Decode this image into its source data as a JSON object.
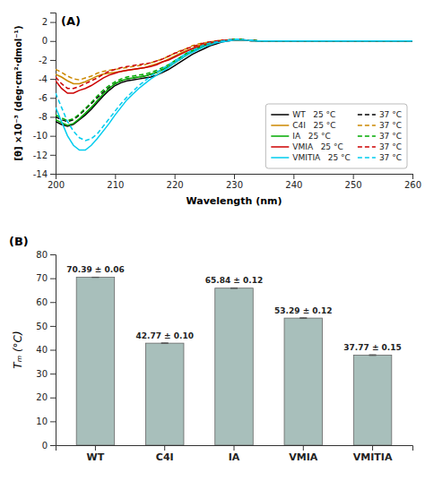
{
  "chart_data": [
    {
      "type": "line",
      "xlabel": "Wavelength (nm)",
      "ylabel": "[θ] ×10⁻³ (deg·cm²·dmol⁻¹)",
      "annotations": [
        "(A)"
      ],
      "x": [
        200,
        201,
        202,
        203,
        204,
        205,
        206,
        207,
        208,
        209,
        210,
        211,
        212,
        213,
        214,
        215,
        216,
        217,
        218,
        219,
        220,
        221,
        222,
        223,
        224,
        225,
        226,
        227,
        228,
        229,
        230,
        231,
        232,
        233,
        234,
        235,
        236,
        237,
        238,
        239,
        240,
        241,
        242,
        243,
        244,
        245,
        246,
        247,
        248,
        249,
        250,
        251,
        252,
        253,
        254,
        255,
        256,
        257,
        258,
        259,
        260
      ],
      "series": [
        {
          "name": "WT   25 °C",
          "color": "#000000",
          "line_style": "solid",
          "values": [
            -8.5,
            -8.8,
            -9.0,
            -8.8,
            -8.3,
            -7.8,
            -7.2,
            -6.5,
            -5.8,
            -5.2,
            -4.7,
            -4.4,
            -4.2,
            -4.1,
            -4.0,
            -3.9,
            -3.8,
            -3.6,
            -3.3,
            -3.0,
            -2.6,
            -2.2,
            -1.8,
            -1.4,
            -1.1,
            -0.8,
            -0.5,
            -0.3,
            -0.1,
            0.0,
            0.1,
            0.1,
            0.1,
            0.1,
            0.0,
            0.0,
            0.0,
            0.0,
            0.0,
            0.0,
            0.0,
            0.0,
            0.0,
            0.0,
            0.0,
            0.0,
            0.0,
            0.0,
            0.0,
            0.0,
            0.0,
            0.0,
            0.0,
            0.0,
            0.0,
            0.0,
            0.0,
            0.0,
            0.0,
            0.0,
            0.0
          ]
        },
        {
          "name": "37 °C",
          "color": "#000000",
          "line_style": "dashed",
          "values": [
            -8.0,
            -8.3,
            -8.5,
            -8.3,
            -7.8,
            -7.2,
            -6.6,
            -6.0,
            -5.4,
            -4.9,
            -4.5,
            -4.2,
            -4.0,
            -3.9,
            -3.8,
            -3.7,
            -3.5,
            -3.3,
            -3.0,
            -2.7,
            -2.3,
            -1.9,
            -1.5,
            -1.1,
            -0.8,
            -0.5,
            -0.3,
            -0.1,
            0.0,
            0.1,
            0.2,
            0.2,
            0.1,
            0.1,
            0.0,
            0.0,
            0.0,
            0.0,
            0.0,
            0.0,
            0.0,
            0.0,
            0.0,
            0.0,
            0.0,
            0.0,
            0.0,
            0.0,
            0.0,
            0.0,
            0.0,
            0.0,
            0.0,
            0.0,
            0.0,
            0.0,
            0.0,
            0.0,
            0.0,
            0.0,
            0.0
          ]
        },
        {
          "name": "C4I   25 °C",
          "color": "#cc8800",
          "line_style": "solid",
          "values": [
            -3.5,
            -3.8,
            -4.2,
            -4.5,
            -4.5,
            -4.3,
            -4.0,
            -3.7,
            -3.5,
            -3.4,
            -3.3,
            -3.2,
            -3.1,
            -3.0,
            -2.9,
            -2.8,
            -2.6,
            -2.4,
            -2.2,
            -1.9,
            -1.6,
            -1.3,
            -1.0,
            -0.8,
            -0.5,
            -0.3,
            -0.2,
            -0.1,
            0.0,
            0.1,
            0.1,
            0.1,
            0.1,
            0.0,
            0.0,
            0.0,
            0.0,
            0.0,
            0.0,
            0.0,
            0.0,
            0.0,
            0.0,
            0.0,
            0.0,
            0.0,
            0.0,
            0.0,
            0.0,
            0.0,
            0.0,
            0.0,
            0.0,
            0.0,
            0.0,
            0.0,
            0.0,
            0.0,
            0.0,
            0.0,
            0.0
          ]
        },
        {
          "name": "37 °C",
          "color": "#cc8800",
          "line_style": "dashed",
          "values": [
            -3.0,
            -3.3,
            -3.7,
            -4.0,
            -4.1,
            -3.9,
            -3.7,
            -3.4,
            -3.2,
            -3.1,
            -3.0,
            -2.9,
            -2.8,
            -2.7,
            -2.6,
            -2.5,
            -2.3,
            -2.1,
            -1.9,
            -1.6,
            -1.3,
            -1.0,
            -0.8,
            -0.5,
            -0.3,
            -0.2,
            -0.1,
            0.0,
            0.1,
            0.1,
            0.2,
            0.1,
            0.1,
            0.0,
            0.0,
            0.0,
            0.0,
            0.0,
            0.0,
            0.0,
            0.0,
            0.0,
            0.0,
            0.0,
            0.0,
            0.0,
            0.0,
            0.0,
            0.0,
            0.0,
            0.0,
            0.0,
            0.0,
            0.0,
            0.0,
            0.0,
            0.0,
            0.0,
            0.0,
            0.0,
            0.0
          ]
        },
        {
          "name": "IA   25 °C",
          "color": "#00aa00",
          "line_style": "solid",
          "values": [
            -8.3,
            -8.6,
            -8.9,
            -8.7,
            -8.2,
            -7.6,
            -7.0,
            -6.3,
            -5.6,
            -5.0,
            -4.5,
            -4.2,
            -4.0,
            -3.9,
            -3.8,
            -3.7,
            -3.5,
            -3.3,
            -3.0,
            -2.7,
            -2.3,
            -1.9,
            -1.5,
            -1.1,
            -0.8,
            -0.5,
            -0.3,
            -0.1,
            0.0,
            0.1,
            0.1,
            0.1,
            0.1,
            0.1,
            0.0,
            0.0,
            0.0,
            0.0,
            0.0,
            0.0,
            0.0,
            0.0,
            0.0,
            0.0,
            0.0,
            0.0,
            0.0,
            0.0,
            0.0,
            0.0,
            0.0,
            0.0,
            0.0,
            0.0,
            0.0,
            0.0,
            0.0,
            0.0,
            0.0,
            0.0,
            0.0
          ]
        },
        {
          "name": "37 °C",
          "color": "#00aa00",
          "line_style": "dashed",
          "values": [
            -7.8,
            -8.1,
            -8.4,
            -8.2,
            -7.7,
            -7.1,
            -6.5,
            -5.8,
            -5.2,
            -4.7,
            -4.3,
            -4.0,
            -3.8,
            -3.7,
            -3.6,
            -3.5,
            -3.3,
            -3.1,
            -2.8,
            -2.5,
            -2.1,
            -1.7,
            -1.3,
            -1.0,
            -0.7,
            -0.4,
            -0.2,
            -0.1,
            0.0,
            0.1,
            0.2,
            0.2,
            0.1,
            0.1,
            0.0,
            0.0,
            0.0,
            0.0,
            0.0,
            0.0,
            0.0,
            0.0,
            0.0,
            0.0,
            0.0,
            0.0,
            0.0,
            0.0,
            0.0,
            0.0,
            0.0,
            0.0,
            0.0,
            0.0,
            0.0,
            0.0,
            0.0,
            0.0,
            0.0,
            0.0,
            0.0
          ]
        },
        {
          "name": "VMIA   25 °C",
          "color": "#cc0000",
          "line_style": "solid",
          "values": [
            -4.2,
            -5.0,
            -5.5,
            -5.5,
            -5.2,
            -5.0,
            -4.7,
            -4.3,
            -3.9,
            -3.6,
            -3.4,
            -3.2,
            -3.1,
            -3.0,
            -2.9,
            -2.8,
            -2.7,
            -2.5,
            -2.2,
            -2.0,
            -1.7,
            -1.4,
            -1.1,
            -0.8,
            -0.6,
            -0.4,
            -0.2,
            -0.1,
            0.0,
            0.1,
            0.1,
            0.1,
            0.1,
            0.0,
            0.0,
            0.0,
            0.0,
            0.0,
            0.0,
            0.0,
            0.0,
            0.0,
            0.0,
            0.0,
            0.0,
            0.0,
            0.0,
            0.0,
            0.0,
            0.0,
            0.0,
            0.0,
            0.0,
            0.0,
            0.0,
            0.0,
            0.0,
            0.0,
            0.0,
            0.0,
            0.0
          ]
        },
        {
          "name": "37 °C",
          "color": "#cc0000",
          "line_style": "dashed",
          "values": [
            -3.8,
            -4.5,
            -5.0,
            -5.0,
            -4.8,
            -4.5,
            -4.2,
            -3.9,
            -3.5,
            -3.2,
            -3.0,
            -2.8,
            -2.7,
            -2.6,
            -2.5,
            -2.4,
            -2.3,
            -2.1,
            -1.9,
            -1.6,
            -1.3,
            -1.1,
            -0.8,
            -0.6,
            -0.4,
            -0.2,
            -0.1,
            0.0,
            0.1,
            0.1,
            0.2,
            0.2,
            0.1,
            0.1,
            0.0,
            0.0,
            0.0,
            0.0,
            0.0,
            0.0,
            0.0,
            0.0,
            0.0,
            0.0,
            0.0,
            0.0,
            0.0,
            0.0,
            0.0,
            0.0,
            0.0,
            0.0,
            0.0,
            0.0,
            0.0,
            0.0,
            0.0,
            0.0,
            0.0,
            0.0,
            0.0
          ]
        },
        {
          "name": "VMITIA   25 °C",
          "color": "#00ccee",
          "line_style": "solid",
          "values": [
            -7.0,
            -8.5,
            -10.0,
            -11.0,
            -11.5,
            -11.5,
            -11.0,
            -10.3,
            -9.5,
            -8.7,
            -7.8,
            -7.0,
            -6.2,
            -5.6,
            -5.0,
            -4.5,
            -4.0,
            -3.6,
            -3.2,
            -2.8,
            -2.3,
            -1.9,
            -1.5,
            -1.2,
            -0.9,
            -0.6,
            -0.4,
            -0.2,
            -0.1,
            0.0,
            0.1,
            0.1,
            0.1,
            0.0,
            0.0,
            0.0,
            0.0,
            0.0,
            0.0,
            0.0,
            0.0,
            0.0,
            0.0,
            0.0,
            0.0,
            0.0,
            0.0,
            0.0,
            0.0,
            0.0,
            0.0,
            0.0,
            0.0,
            0.0,
            0.0,
            0.0,
            0.0,
            0.0,
            0.0,
            0.0,
            0.0
          ]
        },
        {
          "name": "37 °C",
          "color": "#00ccee",
          "line_style": "dashed",
          "values": [
            -5.5,
            -7.0,
            -8.5,
            -9.5,
            -10.2,
            -10.5,
            -10.3,
            -9.8,
            -9.0,
            -8.2,
            -7.4,
            -6.6,
            -5.9,
            -5.3,
            -4.7,
            -4.2,
            -3.7,
            -3.3,
            -2.9,
            -2.5,
            -2.1,
            -1.7,
            -1.3,
            -1.0,
            -0.7,
            -0.4,
            -0.2,
            -0.1,
            0.0,
            0.1,
            0.2,
            0.2,
            0.1,
            0.1,
            0.0,
            0.0,
            0.0,
            0.0,
            0.0,
            0.0,
            0.0,
            0.0,
            0.0,
            0.0,
            0.0,
            0.0,
            0.0,
            0.0,
            0.0,
            0.0,
            0.0,
            0.0,
            0.0,
            0.0,
            0.0,
            0.0,
            0.0,
            0.0,
            0.0,
            0.0,
            0.0
          ]
        }
      ],
      "xlim": [
        200,
        260
      ],
      "ylim": [
        -14,
        3
      ],
      "xticks": [
        200,
        210,
        220,
        230,
        240,
        250,
        260
      ],
      "yticks": [
        2,
        0,
        -2,
        -4,
        -6,
        -8,
        -10,
        -12,
        -14
      ],
      "legend": "lower right",
      "grid": false
    },
    {
      "type": "bar",
      "ylabel": "Tₘ (°C)",
      "annotations": [
        "(B)"
      ],
      "categories": [
        "WT",
        "C4I",
        "IA",
        "VMIA",
        "VMITIA"
      ],
      "values": [
        70.39,
        42.77,
        65.84,
        53.29,
        37.77
      ],
      "errors": [
        0.06,
        0.1,
        0.12,
        0.12,
        0.15
      ],
      "value_labels": [
        "70.39 ± 0.06",
        "42.77 ± 0.10",
        "65.84 ± 0.12",
        "53.29 ± 0.12",
        "37.77 ± 0.15"
      ],
      "data_labels": true,
      "color": "#a8bfbb",
      "ylim": [
        0,
        80
      ],
      "yticks": [
        0,
        10,
        20,
        30,
        40,
        50,
        60,
        70,
        80
      ],
      "grid": false
    }
  ]
}
